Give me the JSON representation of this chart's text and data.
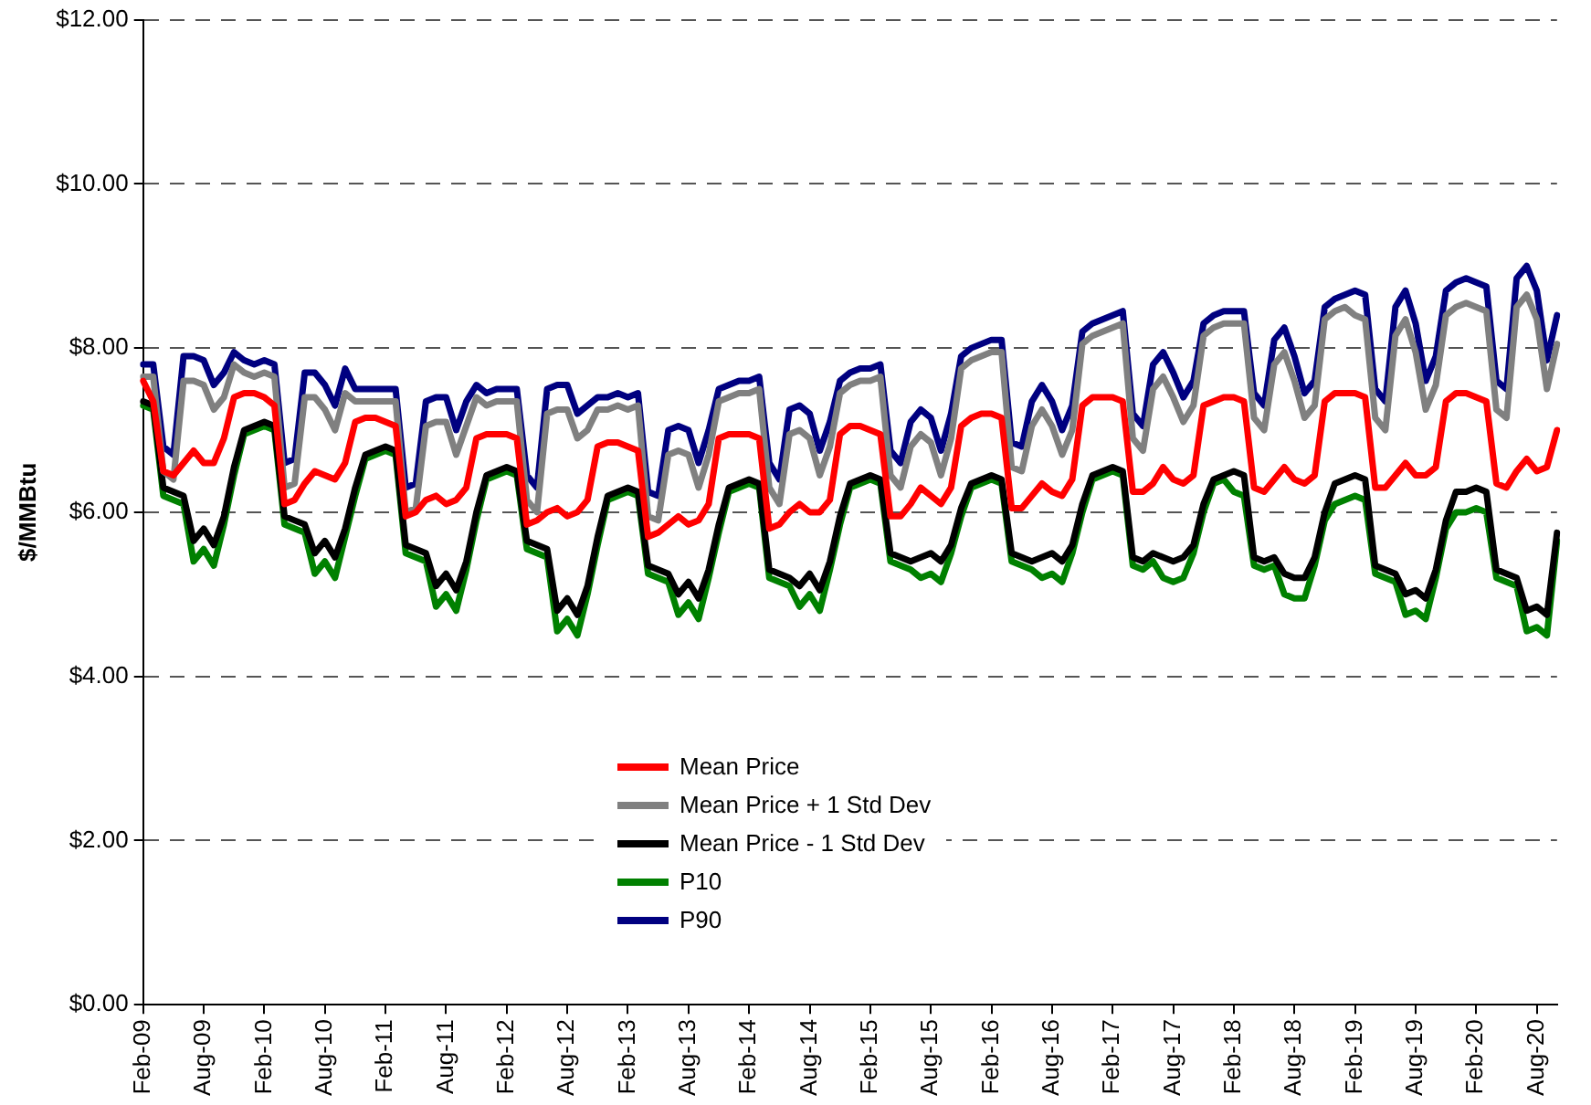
{
  "chart_data": {
    "type": "line",
    "ylabel": "$/MMBtu",
    "ylim": [
      0,
      12
    ],
    "yticks": [
      {
        "value": 0,
        "label": "$0.00"
      },
      {
        "value": 2,
        "label": "$2.00"
      },
      {
        "value": 4,
        "label": "$4.00"
      },
      {
        "value": 6,
        "label": "$6.00"
      },
      {
        "value": 8,
        "label": "$8.00"
      },
      {
        "value": 10,
        "label": "$10.00"
      },
      {
        "value": 12,
        "label": "$12.00"
      }
    ],
    "grid": "y",
    "legend": "bottom",
    "marker": "none",
    "line_style": "solid",
    "categories": [
      "Feb-09",
      null,
      null,
      null,
      null,
      null,
      "Aug-09",
      null,
      null,
      null,
      null,
      null,
      "Feb-10",
      null,
      null,
      null,
      null,
      null,
      "Aug-10",
      null,
      null,
      null,
      null,
      null,
      "Feb-11",
      null,
      null,
      null,
      null,
      null,
      "Aug-11",
      null,
      null,
      null,
      null,
      null,
      "Feb-12",
      null,
      null,
      null,
      null,
      null,
      "Aug-12",
      null,
      null,
      null,
      null,
      null,
      "Feb-13",
      null,
      null,
      null,
      null,
      null,
      "Aug-13",
      null,
      null,
      null,
      null,
      null,
      "Feb-14",
      null,
      null,
      null,
      null,
      null,
      "Aug-14",
      null,
      null,
      null,
      null,
      null,
      "Feb-15",
      null,
      null,
      null,
      null,
      null,
      "Aug-15",
      null,
      null,
      null,
      null,
      null,
      "Feb-16",
      null,
      null,
      null,
      null,
      null,
      "Aug-16",
      null,
      null,
      null,
      null,
      null,
      "Feb-17",
      null,
      null,
      null,
      null,
      null,
      "Aug-17",
      null,
      null,
      null,
      null,
      null,
      "Feb-18",
      null,
      null,
      null,
      null,
      null,
      "Aug-18",
      null,
      null,
      null,
      null,
      null,
      "Feb-19",
      null,
      null,
      null,
      null,
      null,
      "Aug-19",
      null,
      null,
      null,
      null,
      null,
      "Feb-20",
      null,
      null,
      null,
      null,
      null,
      "Aug-20",
      null,
      null
    ],
    "series": [
      {
        "name": "Mean Price",
        "color": "#ff0000",
        "values": [
          7.6,
          7.35,
          6.5,
          6.45,
          6.6,
          6.75,
          6.6,
          6.6,
          6.9,
          7.4,
          7.45,
          7.45,
          7.4,
          7.3,
          6.1,
          6.15,
          6.35,
          6.5,
          6.45,
          6.4,
          6.6,
          7.1,
          7.15,
          7.15,
          7.1,
          7.05,
          5.95,
          6.0,
          6.15,
          6.2,
          6.1,
          6.15,
          6.3,
          6.9,
          6.95,
          6.95,
          6.95,
          6.9,
          5.85,
          5.9,
          6.0,
          6.05,
          5.95,
          6.0,
          6.15,
          6.8,
          6.85,
          6.85,
          6.8,
          6.75,
          5.7,
          5.75,
          5.85,
          5.95,
          5.85,
          5.9,
          6.1,
          6.9,
          6.95,
          6.95,
          6.95,
          6.9,
          5.8,
          5.85,
          6.0,
          6.1,
          6.0,
          6.0,
          6.15,
          6.95,
          7.05,
          7.05,
          7.0,
          6.95,
          5.95,
          5.95,
          6.1,
          6.3,
          6.2,
          6.1,
          6.3,
          7.05,
          7.15,
          7.2,
          7.2,
          7.15,
          6.05,
          6.05,
          6.2,
          6.35,
          6.25,
          6.2,
          6.4,
          7.3,
          7.4,
          7.4,
          7.4,
          7.35,
          6.25,
          6.25,
          6.35,
          6.55,
          6.4,
          6.35,
          6.45,
          7.3,
          7.35,
          7.4,
          7.4,
          7.35,
          6.3,
          6.25,
          6.4,
          6.55,
          6.4,
          6.35,
          6.45,
          7.35,
          7.45,
          7.45,
          7.45,
          7.4,
          6.3,
          6.3,
          6.45,
          6.6,
          6.45,
          6.45,
          6.55,
          7.35,
          7.45,
          7.45,
          7.4,
          7.35,
          6.35,
          6.3,
          6.5,
          6.65,
          6.5,
          6.55,
          7.0
        ]
      },
      {
        "name": "Mean Price + 1 Std Dev",
        "color": "#808080",
        "values": [
          7.65,
          7.65,
          6.5,
          6.4,
          7.6,
          7.6,
          7.55,
          7.25,
          7.4,
          7.8,
          7.7,
          7.65,
          7.7,
          7.65,
          6.3,
          6.35,
          7.4,
          7.4,
          7.25,
          7.0,
          7.45,
          7.35,
          7.35,
          7.35,
          7.35,
          7.35,
          6.0,
          6.05,
          7.05,
          7.1,
          7.1,
          6.7,
          7.05,
          7.4,
          7.3,
          7.35,
          7.35,
          7.35,
          6.15,
          6.0,
          7.2,
          7.25,
          7.25,
          6.9,
          7.0,
          7.25,
          7.25,
          7.3,
          7.25,
          7.3,
          5.95,
          5.9,
          6.7,
          6.75,
          6.7,
          6.3,
          6.7,
          7.35,
          7.4,
          7.45,
          7.45,
          7.5,
          6.3,
          6.1,
          6.95,
          7.0,
          6.9,
          6.45,
          6.8,
          7.45,
          7.55,
          7.6,
          7.6,
          7.65,
          6.45,
          6.3,
          6.8,
          6.95,
          6.85,
          6.45,
          6.9,
          7.75,
          7.85,
          7.9,
          7.95,
          7.95,
          6.55,
          6.5,
          7.05,
          7.25,
          7.05,
          6.7,
          7.0,
          8.05,
          8.15,
          8.2,
          8.25,
          8.3,
          6.9,
          6.75,
          7.5,
          7.65,
          7.4,
          7.1,
          7.3,
          8.15,
          8.25,
          8.3,
          8.3,
          8.3,
          7.15,
          7.0,
          7.8,
          7.95,
          7.6,
          7.15,
          7.3,
          8.35,
          8.45,
          8.5,
          8.4,
          8.35,
          7.15,
          7.0,
          8.15,
          8.35,
          7.95,
          7.25,
          7.55,
          8.4,
          8.5,
          8.55,
          8.5,
          8.45,
          7.25,
          7.15,
          8.5,
          8.65,
          8.35,
          7.5,
          8.05
        ]
      },
      {
        "name": "Mean Price - 1 Std Dev",
        "color": "#000000",
        "values": [
          7.35,
          7.3,
          6.3,
          6.25,
          6.2,
          5.65,
          5.8,
          5.6,
          5.95,
          6.55,
          7.0,
          7.05,
          7.1,
          7.05,
          5.95,
          5.9,
          5.85,
          5.5,
          5.65,
          5.45,
          5.8,
          6.3,
          6.7,
          6.75,
          6.8,
          6.75,
          5.6,
          5.55,
          5.5,
          5.1,
          5.25,
          5.05,
          5.4,
          6.0,
          6.45,
          6.5,
          6.55,
          6.5,
          5.65,
          5.6,
          5.55,
          4.8,
          4.95,
          4.75,
          5.1,
          5.7,
          6.2,
          6.25,
          6.3,
          6.25,
          5.35,
          5.3,
          5.25,
          5.0,
          5.15,
          4.95,
          5.3,
          5.85,
          6.3,
          6.35,
          6.4,
          6.35,
          5.3,
          5.25,
          5.2,
          5.1,
          5.25,
          5.05,
          5.4,
          5.95,
          6.35,
          6.4,
          6.45,
          6.4,
          5.5,
          5.45,
          5.4,
          5.45,
          5.5,
          5.4,
          5.6,
          6.05,
          6.35,
          6.4,
          6.45,
          6.4,
          5.5,
          5.45,
          5.4,
          5.45,
          5.5,
          5.4,
          5.6,
          6.1,
          6.45,
          6.5,
          6.55,
          6.5,
          5.45,
          5.4,
          5.5,
          5.45,
          5.4,
          5.45,
          5.6,
          6.1,
          6.4,
          6.45,
          6.5,
          6.45,
          5.45,
          5.4,
          5.45,
          5.25,
          5.2,
          5.2,
          5.45,
          6.0,
          6.35,
          6.4,
          6.45,
          6.4,
          5.35,
          5.3,
          5.25,
          5.0,
          5.05,
          4.95,
          5.3,
          5.9,
          6.25,
          6.25,
          6.3,
          6.25,
          5.3,
          5.25,
          5.2,
          4.8,
          4.85,
          4.75,
          5.75
        ]
      },
      {
        "name": "P10",
        "color": "#008000",
        "values": [
          7.3,
          7.25,
          6.2,
          6.15,
          6.1,
          5.4,
          5.55,
          5.35,
          5.85,
          6.45,
          6.95,
          7.0,
          7.05,
          7.0,
          5.85,
          5.8,
          5.75,
          5.25,
          5.4,
          5.2,
          5.7,
          6.2,
          6.65,
          6.7,
          6.75,
          6.7,
          5.5,
          5.45,
          5.4,
          4.85,
          5.0,
          4.8,
          5.3,
          5.9,
          6.4,
          6.45,
          6.5,
          6.45,
          5.55,
          5.5,
          5.45,
          4.55,
          4.7,
          4.5,
          5.0,
          5.6,
          6.15,
          6.2,
          6.25,
          6.2,
          5.25,
          5.2,
          5.15,
          4.75,
          4.9,
          4.7,
          5.2,
          5.75,
          6.25,
          6.3,
          6.35,
          6.3,
          5.2,
          5.15,
          5.1,
          4.85,
          5.0,
          4.8,
          5.3,
          5.85,
          6.3,
          6.35,
          6.4,
          6.35,
          5.4,
          5.35,
          5.3,
          5.2,
          5.25,
          5.15,
          5.5,
          5.95,
          6.3,
          6.35,
          6.4,
          6.35,
          5.4,
          5.35,
          5.3,
          5.2,
          5.25,
          5.15,
          5.5,
          6.0,
          6.4,
          6.45,
          6.5,
          6.45,
          5.35,
          5.3,
          5.4,
          5.2,
          5.15,
          5.2,
          5.5,
          6.0,
          6.35,
          6.4,
          6.25,
          6.2,
          5.35,
          5.3,
          5.35,
          5.0,
          4.95,
          4.95,
          5.35,
          5.9,
          6.1,
          6.15,
          6.2,
          6.15,
          5.25,
          5.2,
          5.15,
          4.75,
          4.8,
          4.7,
          5.2,
          5.8,
          6.0,
          6.0,
          6.05,
          6.0,
          5.2,
          5.15,
          5.1,
          4.55,
          4.6,
          4.5,
          5.65
        ]
      },
      {
        "name": "P90",
        "color": "#000080",
        "values": [
          7.8,
          7.8,
          6.8,
          6.7,
          7.9,
          7.9,
          7.85,
          7.55,
          7.7,
          7.95,
          7.85,
          7.8,
          7.85,
          7.8,
          6.6,
          6.65,
          7.7,
          7.7,
          7.55,
          7.3,
          7.75,
          7.5,
          7.5,
          7.5,
          7.5,
          7.5,
          6.3,
          6.35,
          7.35,
          7.4,
          7.4,
          7.0,
          7.35,
          7.55,
          7.45,
          7.5,
          7.5,
          7.5,
          6.45,
          6.3,
          7.5,
          7.55,
          7.55,
          7.2,
          7.3,
          7.4,
          7.4,
          7.45,
          7.4,
          7.45,
          6.25,
          6.2,
          7.0,
          7.05,
          7.0,
          6.6,
          7.0,
          7.5,
          7.55,
          7.6,
          7.6,
          7.65,
          6.6,
          6.4,
          7.25,
          7.3,
          7.2,
          6.75,
          7.1,
          7.6,
          7.7,
          7.75,
          7.75,
          7.8,
          6.75,
          6.6,
          7.1,
          7.25,
          7.15,
          6.75,
          7.2,
          7.9,
          8.0,
          8.05,
          8.1,
          8.1,
          6.85,
          6.8,
          7.35,
          7.55,
          7.35,
          7.0,
          7.3,
          8.2,
          8.3,
          8.35,
          8.4,
          8.45,
          7.2,
          7.05,
          7.8,
          7.95,
          7.7,
          7.4,
          7.6,
          8.3,
          8.4,
          8.45,
          8.45,
          8.45,
          7.45,
          7.3,
          8.1,
          8.25,
          7.9,
          7.45,
          7.6,
          8.5,
          8.6,
          8.65,
          8.7,
          8.65,
          7.5,
          7.35,
          8.5,
          8.7,
          8.3,
          7.6,
          7.9,
          8.7,
          8.8,
          8.85,
          8.8,
          8.75,
          7.6,
          7.5,
          8.85,
          9.0,
          8.7,
          7.85,
          8.4
        ]
      }
    ]
  }
}
